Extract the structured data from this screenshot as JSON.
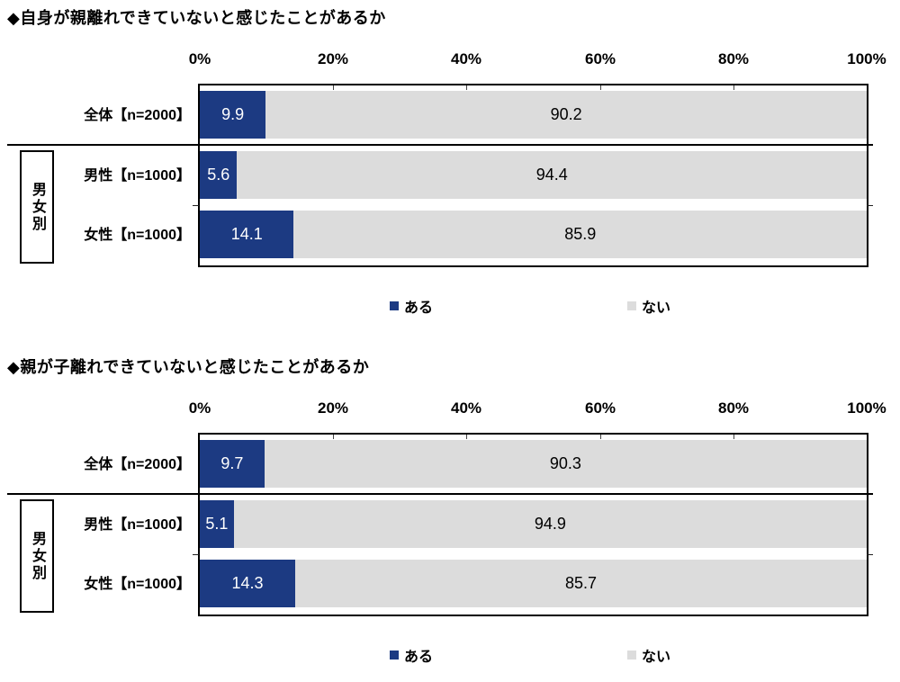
{
  "page": {
    "background": "#ffffff"
  },
  "colors": {
    "aru": "#1c3a82",
    "nai": "#dcdcdc",
    "frame": "#000000",
    "aru_text": "#ffffff",
    "nai_text": "#000000"
  },
  "axis": {
    "ticks": [
      "0%",
      "20%",
      "40%",
      "60%",
      "80%",
      "100%"
    ]
  },
  "legend": [
    {
      "label": "ある",
      "color": "#1c3a82"
    },
    {
      "label": "ない",
      "color": "#dcdcdc"
    }
  ],
  "group_label": "男女別",
  "charts": [
    {
      "title": "◆自身が親離れできていないと感じたことがあるか",
      "rows": [
        {
          "label": "全体【n=2000】",
          "aru": "9.9",
          "nai": "90.2"
        },
        {
          "label": "男性【n=1000】",
          "aru": "5.6",
          "nai": "94.4"
        },
        {
          "label": "女性【n=1000】",
          "aru": "14.1",
          "nai": "85.9"
        }
      ]
    },
    {
      "title": "◆親が子離れできていないと感じたことがあるか",
      "rows": [
        {
          "label": "全体【n=2000】",
          "aru": "9.7",
          "nai": "90.3"
        },
        {
          "label": "男性【n=1000】",
          "aru": "5.1",
          "nai": "94.9"
        },
        {
          "label": "女性【n=1000】",
          "aru": "14.3",
          "nai": "85.7"
        }
      ]
    }
  ],
  "chart_data": [
    {
      "type": "bar",
      "orientation": "horizontal",
      "stacked": true,
      "title": "◆自身が親離れできていないと感じたことがあるか",
      "categories": [
        "全体【n=2000】",
        "男性【n=1000】",
        "女性【n=1000】"
      ],
      "series": [
        {
          "name": "ある",
          "values": [
            9.9,
            5.6,
            14.1
          ],
          "color": "#1c3a82"
        },
        {
          "name": "ない",
          "values": [
            90.2,
            94.4,
            85.9
          ],
          "color": "#dcdcdc"
        }
      ],
      "xlim": [
        0,
        100
      ],
      "x_ticks": [
        "0%",
        "20%",
        "40%",
        "60%",
        "80%",
        "100%"
      ],
      "xlabel": "",
      "ylabel": "",
      "legend_position": "bottom",
      "grid": false,
      "category_group": {
        "label": "男女別",
        "members": [
          "男性【n=1000】",
          "女性【n=1000】"
        ]
      }
    },
    {
      "type": "bar",
      "orientation": "horizontal",
      "stacked": true,
      "title": "◆親が子離れできていないと感じたことがあるか",
      "categories": [
        "全体【n=2000】",
        "男性【n=1000】",
        "女性【n=1000】"
      ],
      "series": [
        {
          "name": "ある",
          "values": [
            9.7,
            5.1,
            14.3
          ],
          "color": "#1c3a82"
        },
        {
          "name": "ない",
          "values": [
            90.3,
            94.9,
            85.7
          ],
          "color": "#dcdcdc"
        }
      ],
      "xlim": [
        0,
        100
      ],
      "x_ticks": [
        "0%",
        "20%",
        "40%",
        "60%",
        "80%",
        "100%"
      ],
      "xlabel": "",
      "ylabel": "",
      "legend_position": "bottom",
      "grid": false,
      "category_group": {
        "label": "男女別",
        "members": [
          "男性【n=1000】",
          "女性【n=1000】"
        ]
      }
    }
  ]
}
